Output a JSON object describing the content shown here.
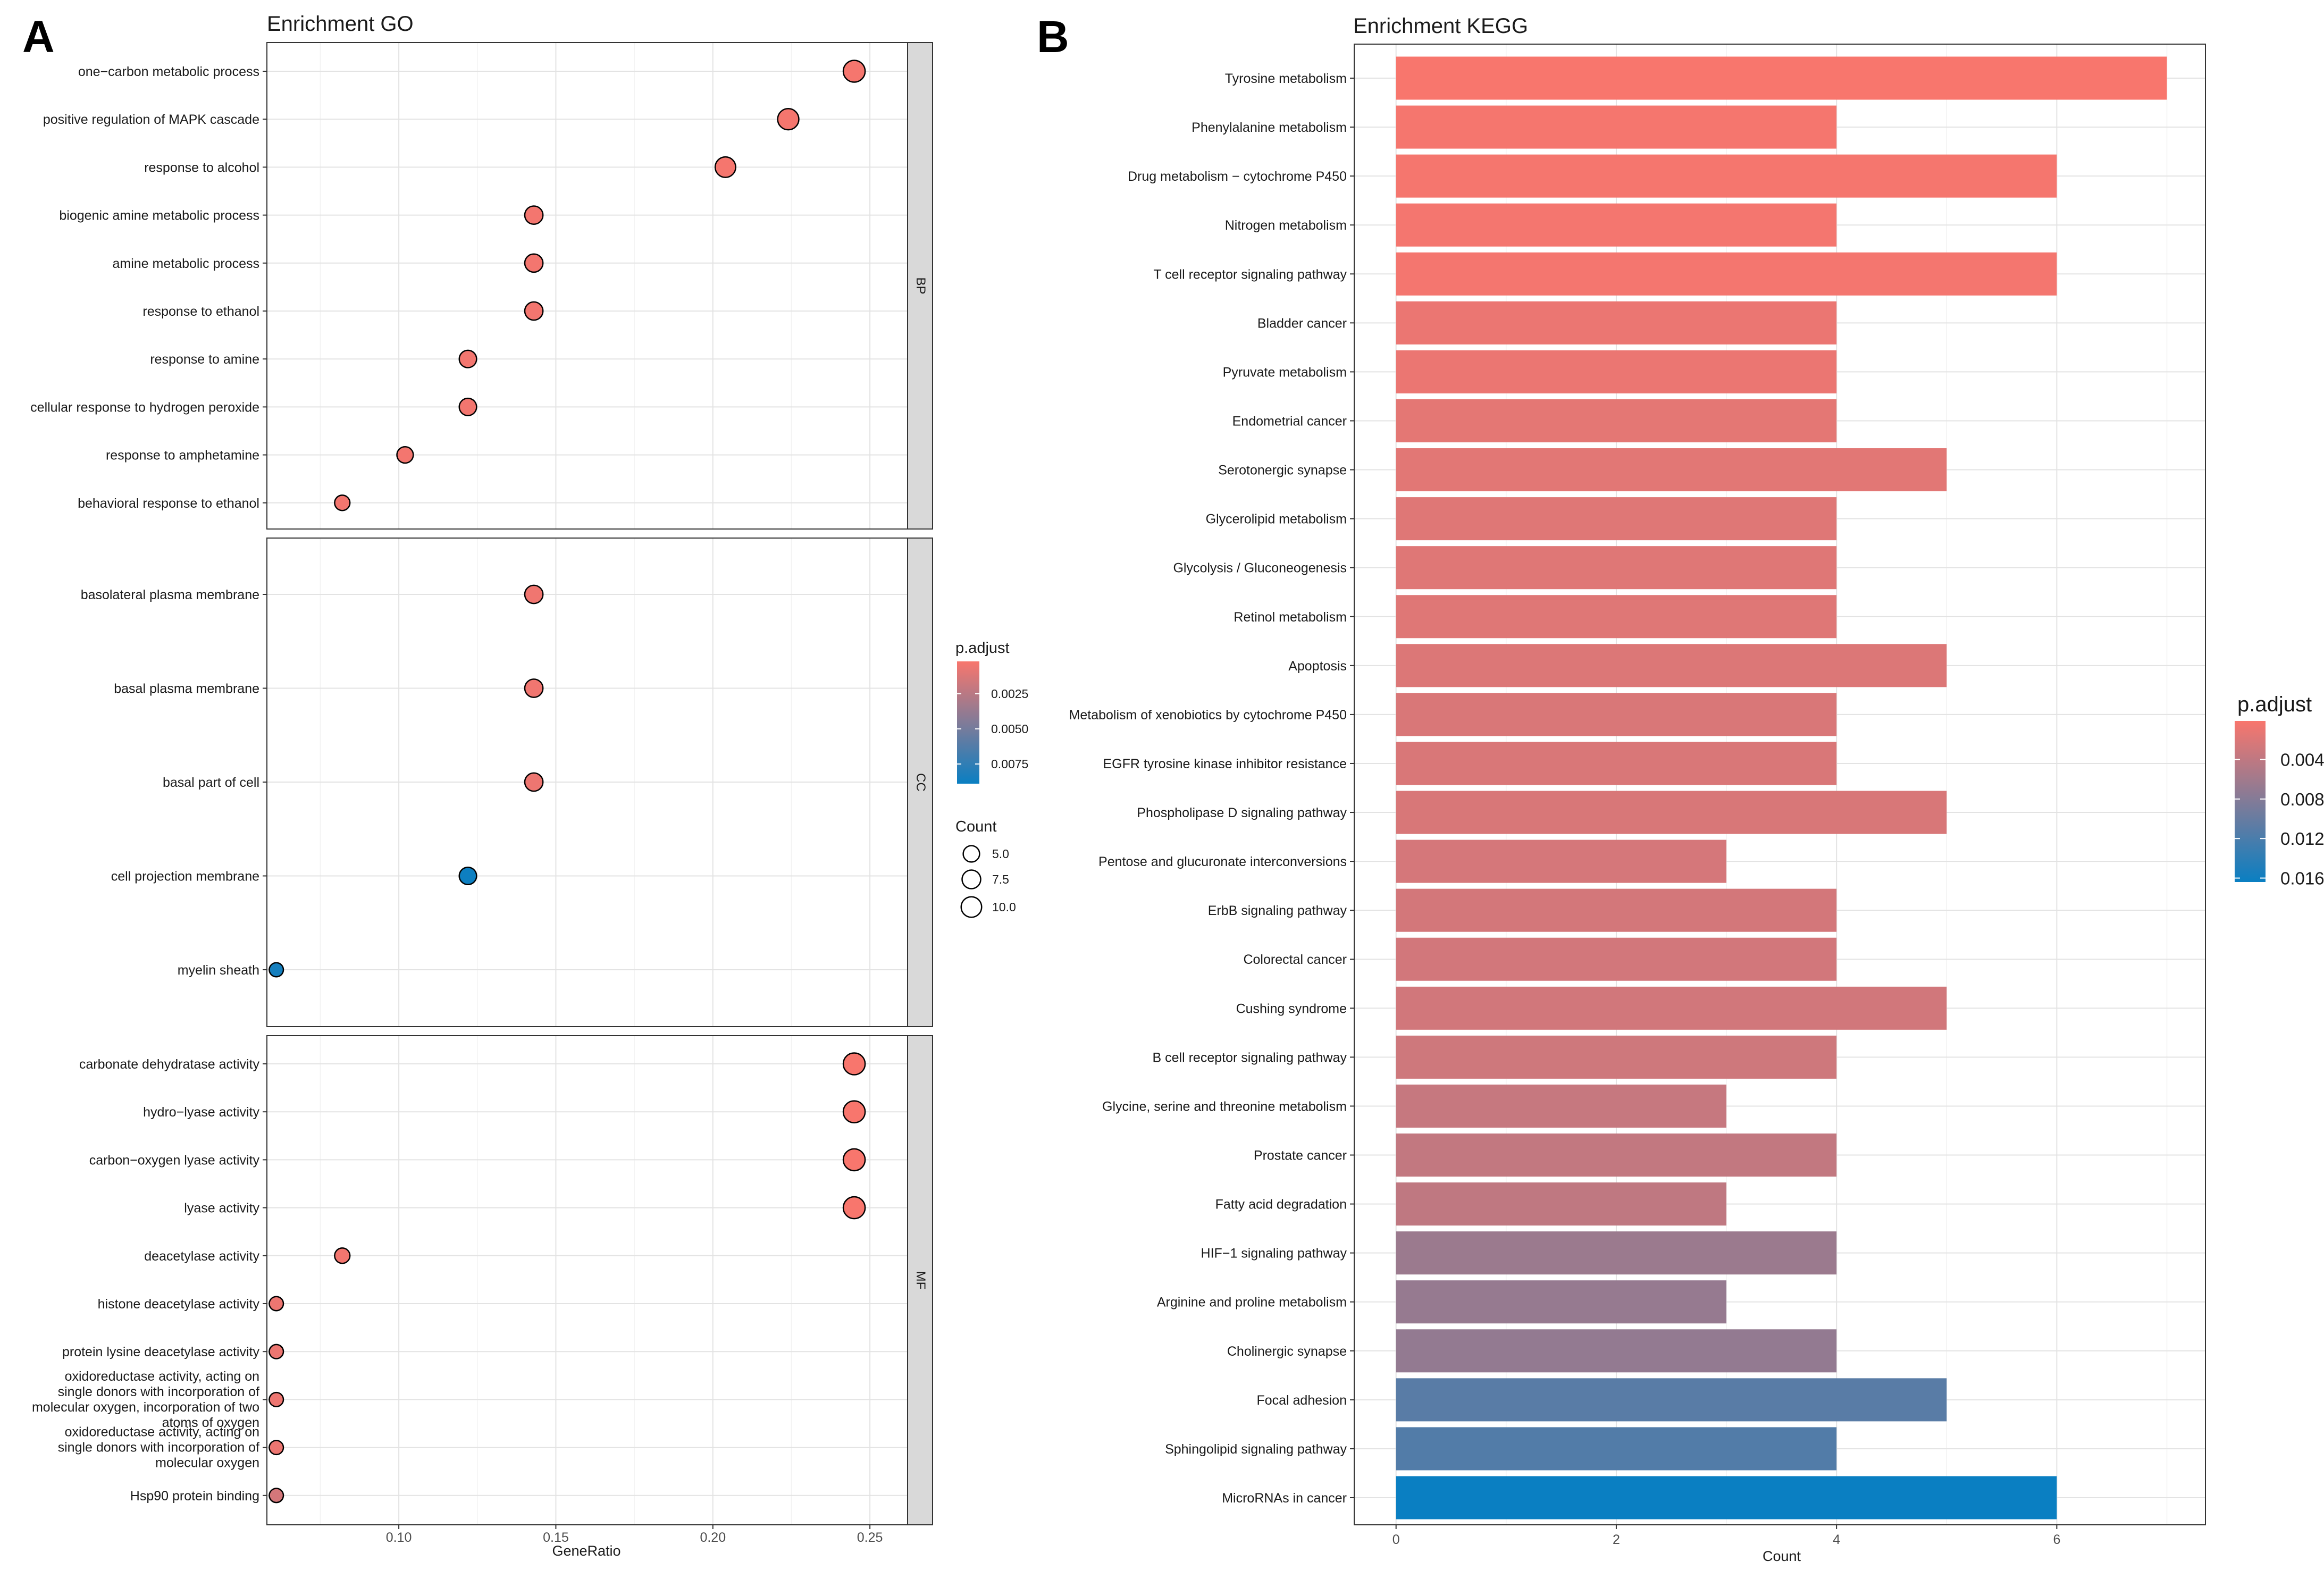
{
  "panels": {
    "a_label": "A",
    "b_label": "B"
  },
  "chart_data": [
    {
      "type": "scatter",
      "title": "Enrichment GO",
      "xlabel": "GeneRatio",
      "ylabel": "",
      "xlim": [
        0.058,
        0.262
      ],
      "xticks": [
        0.1,
        0.15,
        0.2,
        0.25
      ],
      "xtick_labels": [
        "0.10",
        "0.15",
        "0.20",
        "0.25"
      ],
      "grid": true,
      "legend_position": "right",
      "color_legend": {
        "title": "p.adjust",
        "range": [
          0.0002,
          0.0089
        ],
        "ticks": [
          0.0025,
          0.005,
          0.0075
        ],
        "tick_labels": [
          "0.0025",
          "0.0050",
          "0.0075"
        ],
        "color_low": "#F8766D",
        "color_high": "#0A7FC2"
      },
      "size_legend": {
        "title": "Count",
        "values": [
          5.0,
          7.5,
          10.0
        ],
        "labels": [
          "5.0",
          "7.5",
          "10.0"
        ]
      },
      "facets": [
        {
          "name": "BP",
          "terms": [
            {
              "label": "one−carbon metabolic process",
              "gene_ratio": 0.245,
              "count": 12,
              "p_adjust": 0.0003
            },
            {
              "label": "positive regulation of MAPK cascade",
              "gene_ratio": 0.224,
              "count": 11,
              "p_adjust": 0.0003
            },
            {
              "label": "response to alcohol",
              "gene_ratio": 0.204,
              "count": 10,
              "p_adjust": 0.0003
            },
            {
              "label": "biogenic amine metabolic process",
              "gene_ratio": 0.143,
              "count": 7,
              "p_adjust": 0.0004
            },
            {
              "label": "amine metabolic process",
              "gene_ratio": 0.143,
              "count": 7,
              "p_adjust": 0.0004
            },
            {
              "label": "response to ethanol",
              "gene_ratio": 0.143,
              "count": 7,
              "p_adjust": 0.0004
            },
            {
              "label": "response to amine",
              "gene_ratio": 0.122,
              "count": 6,
              "p_adjust": 0.0004
            },
            {
              "label": "cellular response to hydrogen peroxide",
              "gene_ratio": 0.122,
              "count": 6,
              "p_adjust": 0.0004
            },
            {
              "label": "response to amphetamine",
              "gene_ratio": 0.102,
              "count": 5,
              "p_adjust": 0.0004
            },
            {
              "label": "behavioral response to ethanol",
              "gene_ratio": 0.082,
              "count": 4,
              "p_adjust": 0.0004
            }
          ]
        },
        {
          "name": "CC",
          "terms": [
            {
              "label": "basolateral plasma membrane",
              "gene_ratio": 0.143,
              "count": 7,
              "p_adjust": 0.0005
            },
            {
              "label": "basal plasma membrane",
              "gene_ratio": 0.143,
              "count": 7,
              "p_adjust": 0.0005
            },
            {
              "label": "basal part of cell",
              "gene_ratio": 0.143,
              "count": 7,
              "p_adjust": 0.0006
            },
            {
              "label": "cell projection membrane",
              "gene_ratio": 0.122,
              "count": 6,
              "p_adjust": 0.0088
            },
            {
              "label": "myelin sheath",
              "gene_ratio": 0.061,
              "count": 3,
              "p_adjust": 0.0085
            }
          ]
        },
        {
          "name": "MF",
          "terms": [
            {
              "label": "carbonate dehydratase activity",
              "gene_ratio": 0.245,
              "count": 12,
              "p_adjust": 0.0002
            },
            {
              "label": "hydro−lyase activity",
              "gene_ratio": 0.245,
              "count": 12,
              "p_adjust": 0.0002
            },
            {
              "label": "carbon−oxygen lyase activity",
              "gene_ratio": 0.245,
              "count": 12,
              "p_adjust": 0.0002
            },
            {
              "label": "lyase activity",
              "gene_ratio": 0.245,
              "count": 12,
              "p_adjust": 0.0002
            },
            {
              "label": "deacetylase activity",
              "gene_ratio": 0.082,
              "count": 4,
              "p_adjust": 0.0004
            },
            {
              "label": "histone deacetylase activity",
              "gene_ratio": 0.061,
              "count": 3,
              "p_adjust": 0.0006
            },
            {
              "label": "protein lysine deacetylase activity",
              "gene_ratio": 0.061,
              "count": 3,
              "p_adjust": 0.0006
            },
            {
              "label": "oxidoreductase activity, acting on single donors with incorporation of molecular oxygen, incorporation of two atoms of oxygen",
              "label_lines": [
                "oxidoreductase activity, acting on",
                "single donors with incorporation of",
                "molecular oxygen, incorporation of two",
                "atoms of oxygen"
              ],
              "gene_ratio": 0.061,
              "count": 3,
              "p_adjust": 0.0006
            },
            {
              "label": "oxidoreductase activity, acting on single donors with incorporation of molecular oxygen",
              "label_lines": [
                "oxidoreductase activity, acting on",
                "single donors with incorporation of",
                "molecular oxygen"
              ],
              "gene_ratio": 0.061,
              "count": 3,
              "p_adjust": 0.0006
            },
            {
              "label": "Hsp90 protein binding",
              "gene_ratio": 0.061,
              "count": 3,
              "p_adjust": 0.0015
            }
          ]
        }
      ]
    },
    {
      "type": "bar",
      "orientation": "horizontal",
      "title": "Enrichment KEGG",
      "xlabel": "Count",
      "ylabel": "",
      "xlim": [
        -0.38,
        7.35
      ],
      "xticks": [
        0,
        2,
        4,
        6
      ],
      "xtick_labels": [
        "0",
        "2",
        "4",
        "6"
      ],
      "grid": true,
      "legend_position": "right",
      "color_legend": {
        "title": "p.adjust",
        "range": [
          0.0001,
          0.0164
        ],
        "ticks": [
          0.004,
          0.008,
          0.012,
          0.016
        ],
        "tick_labels": [
          "0.004",
          "0.008",
          "0.012",
          "0.016"
        ],
        "color_low": "#F8766D",
        "color_high": "#0A7FC2"
      },
      "categories": [
        "Tyrosine metabolism",
        "Phenylalanine metabolism",
        "Drug metabolism − cytochrome P450",
        "Nitrogen metabolism",
        "T cell receptor signaling pathway",
        "Bladder cancer",
        "Pyruvate metabolism",
        "Endometrial cancer",
        "Serotonergic synapse",
        "Glycerolipid metabolism",
        "Glycolysis / Gluconeogenesis",
        "Retinol metabolism",
        "Apoptosis",
        "Metabolism of xenobiotics by cytochrome P450",
        "EGFR tyrosine kinase inhibitor resistance",
        "Phospholipase D signaling pathway",
        "Pentose and glucuronate interconversions",
        "ErbB signaling pathway",
        "Colorectal cancer",
        "Cushing syndrome",
        "B cell receptor signaling pathway",
        "Glycine, serine and threonine metabolism",
        "Prostate cancer",
        "Fatty acid degradation",
        "HIF−1 signaling pathway",
        "Arginine and proline metabolism",
        "Cholinergic synapse",
        "Focal adhesion",
        "Sphingolipid signaling pathway",
        "MicroRNAs in cancer"
      ],
      "values": [
        7,
        4,
        6,
        4,
        6,
        4,
        4,
        4,
        5,
        4,
        4,
        4,
        5,
        4,
        4,
        5,
        3,
        4,
        4,
        5,
        4,
        3,
        4,
        3,
        4,
        3,
        4,
        5,
        4,
        6
      ],
      "p_adjust": [
        0.0001,
        0.0003,
        0.0003,
        0.0004,
        0.0004,
        0.001,
        0.001,
        0.0015,
        0.0016,
        0.0018,
        0.0018,
        0.0018,
        0.002,
        0.0022,
        0.0022,
        0.0023,
        0.0025,
        0.0026,
        0.0027,
        0.0028,
        0.003,
        0.0035,
        0.0038,
        0.004,
        0.0065,
        0.0068,
        0.007,
        0.011,
        0.0115,
        0.0164
      ]
    }
  ]
}
